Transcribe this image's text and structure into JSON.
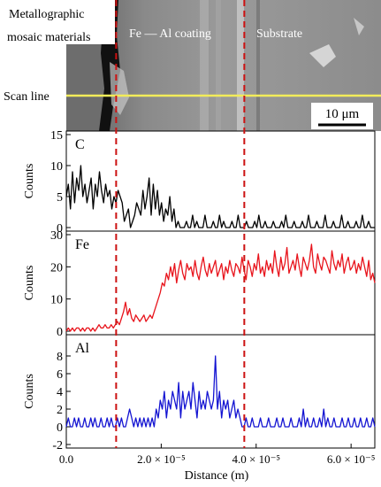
{
  "sem_image": {
    "region_labels": [
      "Metallographic",
      "mosaic materials",
      "Fe — Al coating",
      "Substrate"
    ],
    "scan_line_label": "Scan line",
    "scale_bar_label": "10 μm",
    "scan_line_color": "#f2ec5a"
  },
  "chart_data": [
    {
      "type": "line",
      "panel_label": "C",
      "ylabel": "Counts",
      "color": "#000000",
      "ylim": [
        0,
        15
      ],
      "yticks": [
        0,
        5,
        10,
        15
      ],
      "xlim": [
        0,
        6.5e-05
      ],
      "values": [
        5,
        7,
        3,
        9,
        4,
        8,
        6,
        10,
        5,
        7,
        4,
        6,
        8,
        3,
        7,
        5,
        9,
        6,
        4,
        7,
        5,
        6,
        3,
        5,
        4,
        6,
        5,
        4,
        1,
        2,
        3,
        0,
        1,
        2,
        4,
        3,
        2,
        6,
        3,
        5,
        8,
        2,
        7,
        3,
        6,
        2,
        4,
        1,
        3,
        2,
        5,
        1,
        3,
        0,
        1,
        0,
        0,
        0,
        1,
        0,
        0,
        2,
        0,
        1,
        0,
        0,
        0,
        2,
        0,
        0,
        0,
        1,
        0,
        0,
        2,
        0,
        1,
        0,
        0,
        0,
        1,
        0,
        0,
        2,
        0,
        0,
        0,
        1,
        0,
        0,
        0,
        1,
        0,
        2,
        0,
        0,
        1,
        0,
        0,
        0,
        1,
        0,
        0,
        0,
        1,
        0,
        2,
        0,
        0,
        0,
        1,
        0,
        0,
        0,
        1,
        0,
        0,
        2,
        0,
        0,
        0,
        1,
        0,
        0,
        0,
        2,
        0,
        0,
        0,
        1,
        0,
        0,
        0,
        2,
        0,
        0,
        1,
        0,
        0,
        0,
        1,
        0,
        0,
        2,
        0,
        0,
        1,
        0,
        0,
        0
      ]
    },
    {
      "type": "line",
      "panel_label": "Fe",
      "ylabel": "Counts",
      "color": "#e8141c",
      "ylim": [
        0,
        30
      ],
      "yticks": [
        0,
        10,
        20,
        30
      ],
      "xlim": [
        0,
        6.5e-05
      ],
      "values": [
        0,
        1,
        0,
        1,
        0,
        1,
        1,
        0,
        1,
        0,
        1,
        1,
        0,
        1,
        0,
        1,
        2,
        1,
        1,
        2,
        1,
        1,
        2,
        1,
        2,
        3,
        2,
        4,
        6,
        9,
        5,
        7,
        4,
        3,
        5,
        4,
        3,
        4,
        5,
        3,
        4,
        5,
        4,
        6,
        8,
        10,
        12,
        15,
        14,
        18,
        16,
        20,
        17,
        21,
        15,
        19,
        22,
        18,
        16,
        21,
        19,
        20,
        17,
        22,
        18,
        16,
        20,
        23,
        19,
        17,
        21,
        18,
        20,
        22,
        17,
        19,
        21,
        16,
        20,
        18,
        22,
        19,
        17,
        21,
        20,
        18,
        23,
        19,
        16,
        22,
        20,
        17,
        21,
        19,
        24,
        18,
        20,
        17,
        22,
        19,
        21,
        18,
        25,
        20,
        17,
        23,
        19,
        21,
        26,
        18,
        20,
        22,
        19,
        24,
        20,
        17,
        23,
        21,
        19,
        22,
        27,
        20,
        18,
        24,
        21,
        19,
        23,
        22,
        20,
        18,
        25,
        21,
        19,
        22,
        20,
        24,
        18,
        21,
        23,
        19,
        20,
        22,
        18,
        21,
        19,
        23,
        20,
        17,
        22,
        16,
        18,
        15
      ]
    },
    {
      "type": "line",
      "panel_label": "Al",
      "ylabel": "Counts",
      "color": "#1414d2",
      "ylim": [
        -2,
        10
      ],
      "yticks": [
        -2,
        0,
        2,
        4,
        6,
        8
      ],
      "xlim": [
        0,
        6.5e-05
      ],
      "xlabel": "Distance (m)",
      "xticks": [
        0.0,
        2e-05,
        4e-05,
        6e-05
      ],
      "xtick_labels": [
        "0.0",
        "2.0 × 10⁻⁵",
        "4.0 × 10⁻⁵",
        "6.0 × 10⁻⁵"
      ],
      "values": [
        0,
        1,
        0,
        0,
        1,
        0,
        1,
        0,
        0,
        1,
        0,
        0,
        1,
        0,
        1,
        0,
        0,
        1,
        0,
        0,
        1,
        0,
        1,
        0,
        0,
        1,
        0,
        1,
        0,
        0,
        1,
        2,
        1,
        0,
        1,
        0,
        1,
        0,
        1,
        0,
        1,
        0,
        1,
        0,
        2,
        1,
        3,
        2,
        4,
        1,
        3,
        2,
        4,
        3,
        2,
        5,
        1,
        4,
        2,
        3,
        4,
        2,
        5,
        3,
        1,
        4,
        2,
        3,
        2,
        4,
        3,
        2,
        3,
        8,
        2,
        4,
        1,
        3,
        2,
        3,
        1,
        2,
        3,
        1,
        2,
        1,
        0,
        0,
        1,
        0,
        0,
        1,
        0,
        0,
        0,
        1,
        0,
        0,
        0,
        1,
        0,
        0,
        0,
        1,
        0,
        0,
        1,
        0,
        0,
        0,
        1,
        0,
        0,
        0,
        1,
        0,
        2,
        0,
        1,
        0,
        0,
        1,
        0,
        0,
        1,
        0,
        2,
        0,
        1,
        0,
        0,
        1,
        0,
        0,
        0,
        1,
        0,
        0,
        1,
        0,
        0,
        1,
        0,
        0,
        1,
        0,
        0,
        1,
        0,
        0,
        1,
        0
      ]
    }
  ],
  "interfaces_x": [
    1.05e-05,
    3.75e-05
  ],
  "interface_color": "#cc1111"
}
